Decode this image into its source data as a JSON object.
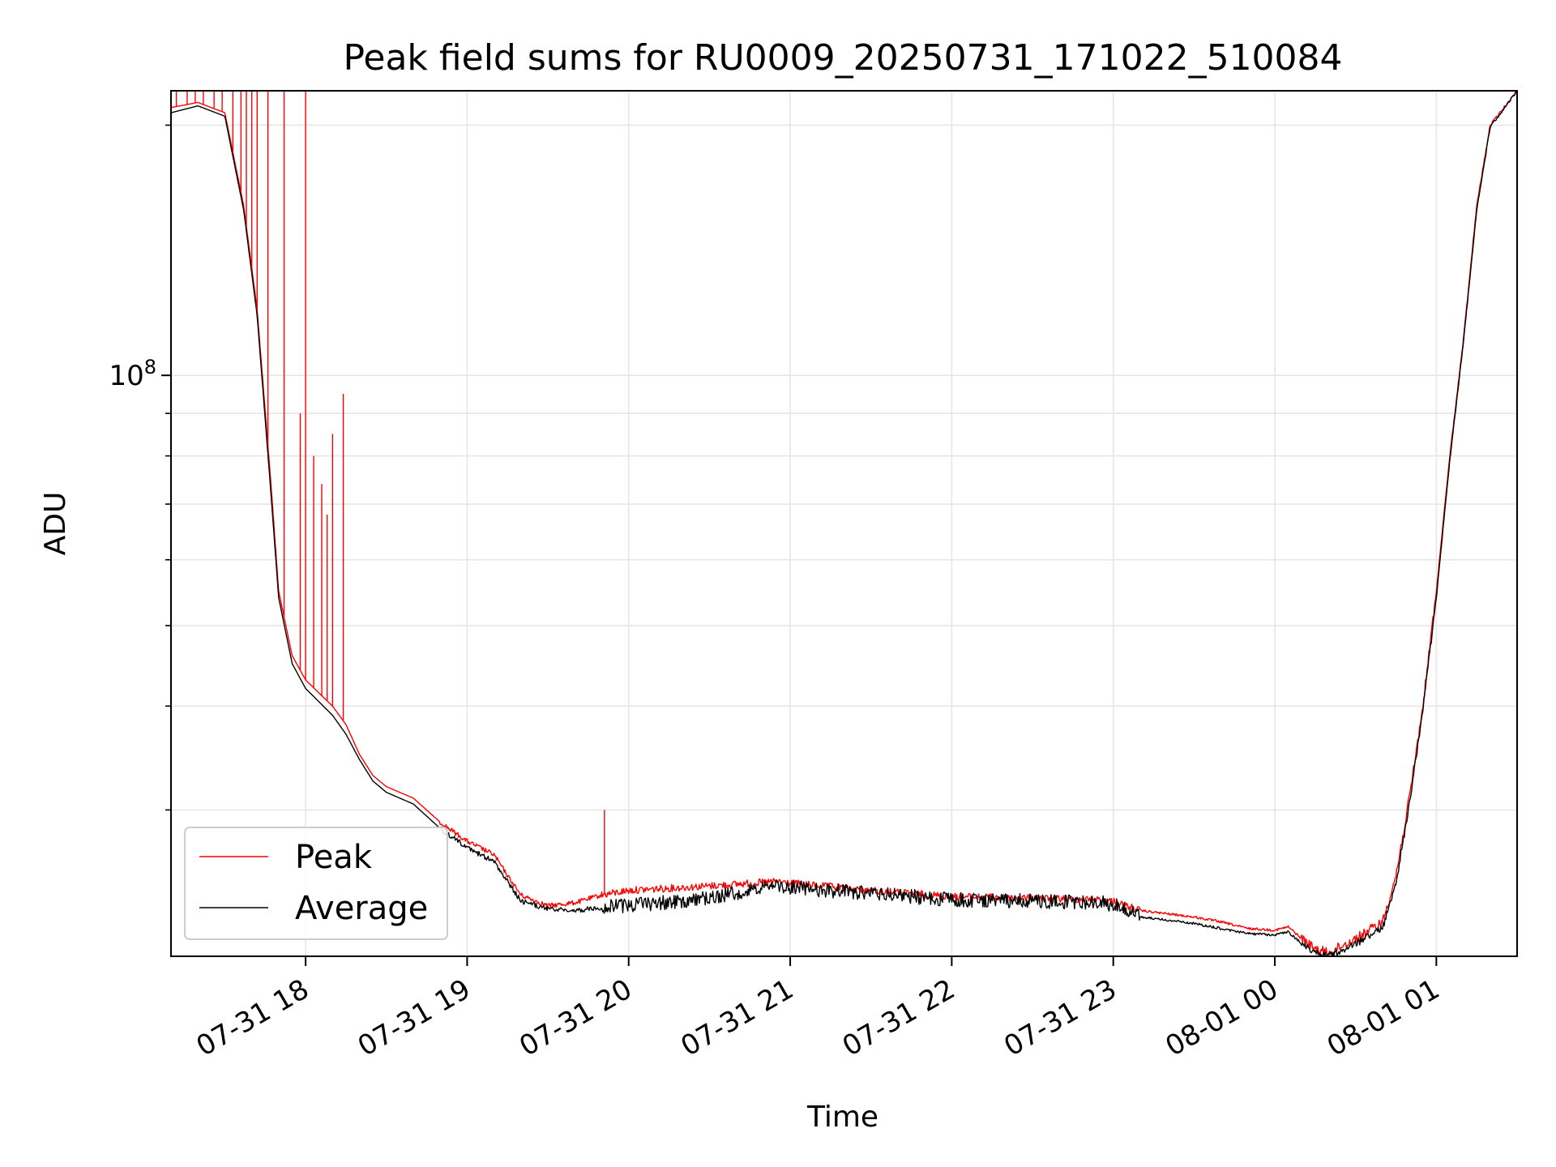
{
  "chart_data": {
    "type": "line",
    "title": "Peak field sums for RU0009_20250731_171022_510084",
    "xlabel": "Time",
    "ylabel": "ADU",
    "y_scale": "log",
    "ylim": [
      20000000,
      220000000
    ],
    "xlim": [
      "2025-07-31 17:10",
      "2025-08-01 01:30"
    ],
    "x_ticks": [
      {
        "t": "2025-07-31 18:00",
        "label": "07-31 18"
      },
      {
        "t": "2025-07-31 19:00",
        "label": "07-31 19"
      },
      {
        "t": "2025-07-31 20:00",
        "label": "07-31 20"
      },
      {
        "t": "2025-07-31 21:00",
        "label": "07-31 21"
      },
      {
        "t": "2025-07-31 22:00",
        "label": "07-31 22"
      },
      {
        "t": "2025-07-31 23:00",
        "label": "07-31 23"
      },
      {
        "t": "2025-08-01 00:00",
        "label": "08-01 00"
      },
      {
        "t": "2025-08-01 01:00",
        "label": "08-01 01"
      }
    ],
    "y_major_ticks": [
      {
        "v": 100000000,
        "base": "10",
        "exp": "8"
      }
    ],
    "y_minor_ticks": [
      30000000,
      40000000,
      50000000,
      60000000,
      70000000,
      80000000,
      90000000,
      200000000
    ],
    "grid": true,
    "legend_position": "lower left",
    "series": [
      {
        "name": "Peak",
        "color": "#ff0000",
        "x": [
          "2025-07-31 17:10",
          "2025-07-31 17:20",
          "2025-07-31 17:30",
          "2025-07-31 17:37",
          "2025-07-31 17:42",
          "2025-07-31 17:47",
          "2025-07-31 17:50",
          "2025-07-31 17:55",
          "2025-07-31 18:00",
          "2025-07-31 18:10",
          "2025-07-31 18:15",
          "2025-07-31 18:20",
          "2025-07-31 18:25",
          "2025-07-31 18:30",
          "2025-07-31 18:40",
          "2025-07-31 18:50",
          "2025-07-31 19:00",
          "2025-07-31 19:10",
          "2025-07-31 19:15",
          "2025-07-31 19:20",
          "2025-07-31 19:30",
          "2025-07-31 19:40",
          "2025-07-31 19:50",
          "2025-07-31 20:00",
          "2025-07-31 20:30",
          "2025-07-31 20:55",
          "2025-07-31 21:00",
          "2025-07-31 21:30",
          "2025-07-31 22:00",
          "2025-07-31 22:30",
          "2025-07-31 22:55",
          "2025-07-31 23:00",
          "2025-07-31 23:10",
          "2025-07-31 23:30",
          "2025-07-31 23:40",
          "2025-07-31 23:50",
          "2025-08-01 00:00",
          "2025-08-01 00:05",
          "2025-08-01 00:10",
          "2025-08-01 00:15",
          "2025-08-01 00:20",
          "2025-08-01 00:30",
          "2025-08-01 00:40",
          "2025-08-01 00:45",
          "2025-08-01 00:50",
          "2025-08-01 00:55",
          "2025-08-01 01:00",
          "2025-08-01 01:05",
          "2025-08-01 01:10",
          "2025-08-01 01:15",
          "2025-08-01 01:20",
          "2025-08-01 01:30"
        ],
        "y": [
          210000000,
          213000000,
          207000000,
          160000000,
          120000000,
          75000000,
          55000000,
          46000000,
          43000000,
          40000000,
          38000000,
          35000000,
          33000000,
          32000000,
          31000000,
          29000000,
          27500000,
          26500000,
          25000000,
          23700000,
          23000000,
          23200000,
          23700000,
          24000000,
          24300000,
          24600000,
          24500000,
          24000000,
          23600000,
          23500000,
          23400000,
          23300000,
          22700000,
          22300000,
          22000000,
          21600000,
          21500000,
          21700000,
          21000000,
          20400000,
          20200000,
          21000000,
          22000000,
          25000000,
          31000000,
          40000000,
          55000000,
          80000000,
          110000000,
          160000000,
          200000000,
          220000000
        ]
      },
      {
        "name": "Average",
        "color": "#000000",
        "x": [
          "2025-07-31 17:10",
          "2025-07-31 17:20",
          "2025-07-31 17:30",
          "2025-07-31 17:37",
          "2025-07-31 17:42",
          "2025-07-31 17:47",
          "2025-07-31 17:50",
          "2025-07-31 17:55",
          "2025-07-31 18:00",
          "2025-07-31 18:10",
          "2025-07-31 18:15",
          "2025-07-31 18:20",
          "2025-07-31 18:25",
          "2025-07-31 18:30",
          "2025-07-31 18:40",
          "2025-07-31 18:50",
          "2025-07-31 19:00",
          "2025-07-31 19:10",
          "2025-07-31 19:15",
          "2025-07-31 19:20",
          "2025-07-31 19:30",
          "2025-07-31 19:40",
          "2025-07-31 19:50",
          "2025-07-31 20:00",
          "2025-07-31 20:30",
          "2025-07-31 20:55",
          "2025-07-31 21:00",
          "2025-07-31 21:30",
          "2025-07-31 22:00",
          "2025-07-31 22:30",
          "2025-07-31 22:55",
          "2025-07-31 23:00",
          "2025-07-31 23:10",
          "2025-07-31 23:30",
          "2025-07-31 23:40",
          "2025-07-31 23:50",
          "2025-08-01 00:00",
          "2025-08-01 00:05",
          "2025-08-01 00:10",
          "2025-08-01 00:15",
          "2025-08-01 00:20",
          "2025-08-01 00:30",
          "2025-08-01 00:40",
          "2025-08-01 00:45",
          "2025-08-01 00:50",
          "2025-08-01 00:55",
          "2025-08-01 01:00",
          "2025-08-01 01:05",
          "2025-08-01 01:10",
          "2025-08-01 01:15",
          "2025-08-01 01:20",
          "2025-08-01 01:30"
        ],
        "y": [
          207000000,
          211000000,
          205000000,
          158000000,
          118000000,
          73000000,
          54000000,
          45000000,
          42000000,
          39000000,
          37000000,
          34500000,
          32500000,
          31500000,
          30500000,
          28500000,
          27000000,
          26000000,
          24600000,
          23300000,
          22800000,
          22700000,
          22900000,
          23000000,
          23500000,
          24300000,
          24200000,
          23800000,
          23400000,
          23300000,
          23200000,
          23100000,
          22300000,
          21900000,
          21600000,
          21300000,
          21200000,
          21400000,
          20700000,
          20200000,
          20000000,
          20700000,
          21600000,
          24500000,
          30500000,
          39500000,
          54000000,
          79000000,
          109000000,
          158000000,
          199000000,
          220000000
        ]
      }
    ],
    "peak_spikes": [
      {
        "t": "2025-07-31 17:12",
        "top": 220000000
      },
      {
        "t": "2025-07-31 17:16",
        "top": 220000000
      },
      {
        "t": "2025-07-31 17:19",
        "top": 220000000
      },
      {
        "t": "2025-07-31 17:22",
        "top": 220000000
      },
      {
        "t": "2025-07-31 17:26",
        "top": 220000000
      },
      {
        "t": "2025-07-31 17:29",
        "top": 220000000
      },
      {
        "t": "2025-07-31 17:33",
        "top": 220000000
      },
      {
        "t": "2025-07-31 17:36",
        "top": 220000000
      },
      {
        "t": "2025-07-31 17:38",
        "top": 220000000
      },
      {
        "t": "2025-07-31 17:40",
        "top": 220000000
      },
      {
        "t": "2025-07-31 17:42",
        "top": 220000000
      },
      {
        "t": "2025-07-31 17:46",
        "top": 220000000
      },
      {
        "t": "2025-07-31 17:52",
        "top": 220000000
      },
      {
        "t": "2025-07-31 17:58",
        "top": 90000000
      },
      {
        "t": "2025-07-31 18:00",
        "top": 220000000
      },
      {
        "t": "2025-07-31 18:03",
        "top": 80000000
      },
      {
        "t": "2025-07-31 18:06",
        "top": 74000000
      },
      {
        "t": "2025-07-31 18:08",
        "top": 68000000
      },
      {
        "t": "2025-07-31 18:10",
        "top": 85000000
      },
      {
        "t": "2025-07-31 18:14",
        "top": 95000000
      },
      {
        "t": "2025-07-31 19:51",
        "top": 30000000
      }
    ],
    "legend": [
      {
        "label": "Peak",
        "color": "#ff0000"
      },
      {
        "label": "Average",
        "color": "#000000"
      }
    ]
  }
}
